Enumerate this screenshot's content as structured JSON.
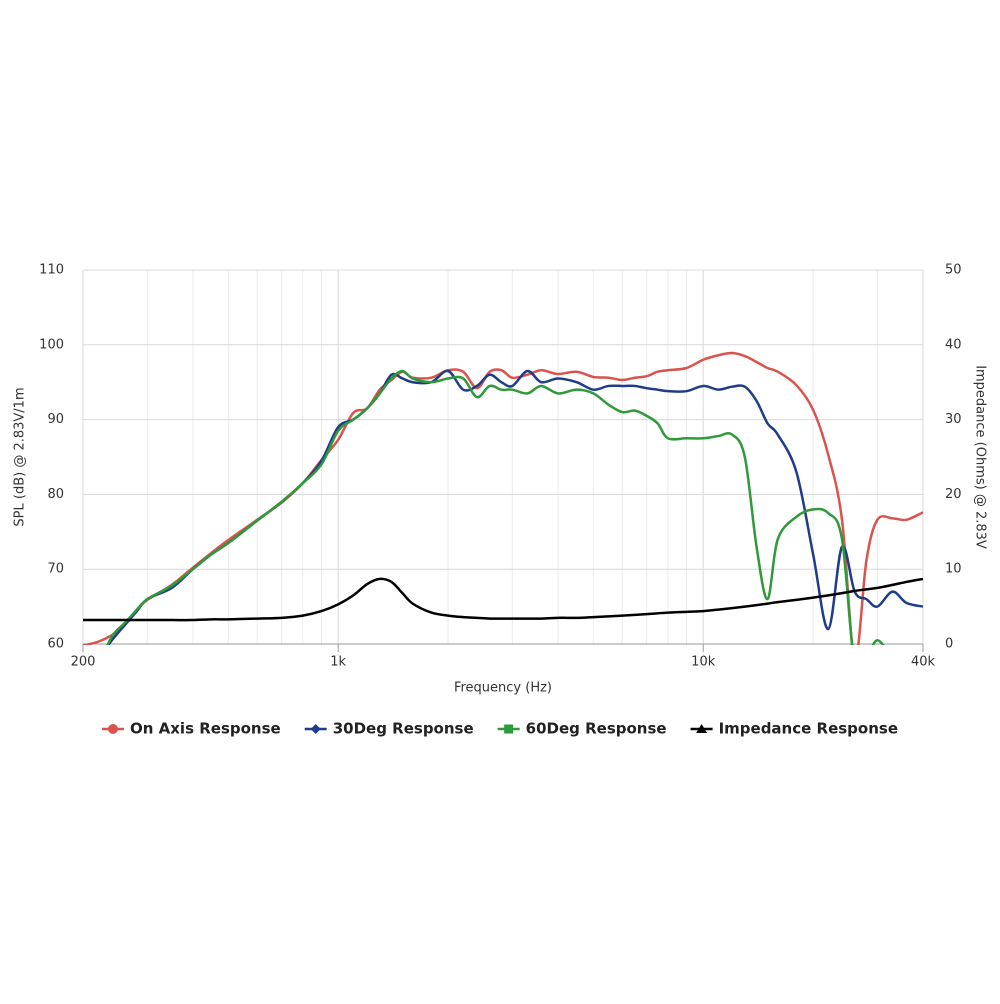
{
  "chart_data": {
    "type": "line",
    "x_label": "Frequency (Hz)",
    "y_label": "SPL (dB) @ 2.83V/1m",
    "y2_label": "Impedance (Ohms) @ 2.83V",
    "xscale": "log",
    "grid": true,
    "legend": "bottom",
    "xlim": [
      200,
      40000
    ],
    "xticks": [
      {
        "value": 200,
        "label": "200"
      },
      {
        "value": 1000,
        "label": "1k"
      },
      {
        "value": 10000,
        "label": "10k"
      },
      {
        "value": 40000,
        "label": "40k"
      }
    ],
    "xgrid": [
      300,
      400,
      500,
      600,
      700,
      800,
      900,
      2000,
      3000,
      4000,
      5000,
      6000,
      7000,
      8000,
      9000,
      20000,
      30000
    ],
    "ylim": [
      60,
      110
    ],
    "yticks": [
      60,
      70,
      80,
      90,
      100,
      110
    ],
    "y2lim": [
      0,
      50
    ],
    "y2ticks": [
      0,
      10,
      20,
      30,
      40,
      50
    ],
    "x": [
      200,
      220,
      240,
      260,
      280,
      300,
      350,
      400,
      450,
      500,
      600,
      700,
      800,
      900,
      1000,
      1100,
      1200,
      1300,
      1400,
      1500,
      1600,
      1800,
      2000,
      2200,
      2400,
      2600,
      2800,
      3000,
      3300,
      3600,
      4000,
      4500,
      5000,
      5500,
      6000,
      6500,
      7000,
      7500,
      8000,
      9000,
      10000,
      11000,
      12000,
      13000,
      14000,
      15000,
      16000,
      18000,
      20000,
      22000,
      24000,
      26000,
      28000,
      30000,
      33000,
      36000,
      40000
    ],
    "series": [
      {
        "name": "On Axis Response",
        "color": "#d9534f",
        "symbol": "circle",
        "values": [
          59.8,
          60.3,
          61.2,
          62.5,
          64.5,
          65.9,
          67.9,
          70.2,
          72.2,
          73.9,
          76.6,
          78.9,
          81.5,
          84.6,
          87.3,
          90.9,
          91.5,
          94,
          95.3,
          96.4,
          95.6,
          95.6,
          96.6,
          96.4,
          94.2,
          96.4,
          96.6,
          95.6,
          96,
          96.6,
          96.1,
          96.4,
          95.7,
          95.6,
          95.3,
          95.6,
          95.8,
          96.4,
          96.6,
          96.9,
          98,
          98.6,
          98.9,
          98.5,
          97.7,
          96.9,
          96.4,
          94.6,
          91.3,
          85.3,
          76.6,
          58,
          71.2,
          76.6,
          76.8,
          76.6,
          77.6
        ]
      },
      {
        "name": "30Deg Response",
        "color": "#1f3c88",
        "symbol": "diamond",
        "values": [
          null,
          58,
          60.5,
          62.5,
          64.3,
          66,
          67.5,
          70,
          72,
          73.5,
          76.5,
          79,
          81.5,
          84.5,
          89,
          90,
          91.5,
          93.5,
          96,
          95.5,
          95,
          95,
          96.5,
          94,
          94.5,
          96,
          95,
          94.5,
          96.5,
          95,
          95.5,
          95,
          94,
          94.5,
          94.5,
          94.5,
          94.2,
          94,
          93.8,
          93.8,
          94.5,
          94,
          94.4,
          94.4,
          92.5,
          89.5,
          88,
          83,
          72,
          62,
          73,
          67,
          66,
          65,
          67,
          65.5,
          65
        ]
      },
      {
        "name": "60Deg Response",
        "color": "#2e9a3a",
        "symbol": "square",
        "values": [
          null,
          57,
          61,
          62.8,
          64.5,
          66,
          67.8,
          70,
          72,
          73.5,
          76.5,
          79,
          81.5,
          84,
          88.5,
          90,
          91.5,
          93.5,
          95.5,
          96.5,
          95.5,
          95,
          95.5,
          95.5,
          93,
          94.5,
          94,
          94,
          93.5,
          94.5,
          93.5,
          94,
          93.5,
          92,
          91,
          91.2,
          90.5,
          89.5,
          87.5,
          87.5,
          87.5,
          87.8,
          88,
          85,
          73,
          66,
          74,
          77,
          78,
          77.5,
          74,
          57,
          58,
          60.5,
          58,
          null,
          null
        ]
      },
      {
        "name": "Impedance Response",
        "color": "#000000",
        "symbol": "triangle",
        "axis": "y2",
        "values": [
          3.2,
          3.2,
          3.2,
          3.2,
          3.2,
          3.2,
          3.2,
          3.2,
          3.3,
          3.3,
          3.4,
          3.5,
          3.8,
          4.4,
          5.3,
          6.5,
          8,
          8.7,
          8.3,
          6.8,
          5.4,
          4.2,
          3.8,
          3.6,
          3.5,
          3.4,
          3.4,
          3.4,
          3.4,
          3.4,
          3.5,
          3.5,
          3.6,
          3.7,
          3.8,
          3.9,
          4,
          4.1,
          4.2,
          4.3,
          4.4,
          4.6,
          4.8,
          5,
          5.2,
          5.4,
          5.6,
          5.9,
          6.2,
          6.5,
          6.8,
          7.1,
          7.3,
          7.5,
          7.9,
          8.3,
          8.7
        ]
      }
    ]
  }
}
